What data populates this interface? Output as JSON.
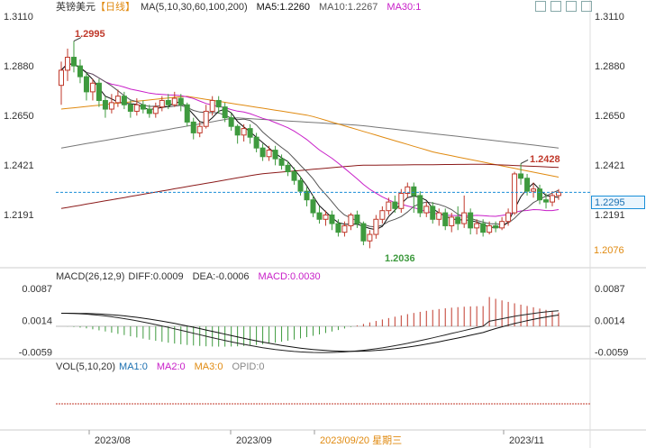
{
  "header": {
    "symbol": "英镑美元",
    "period": "【日线】",
    "ma_label": "MA(5,10,30,60,100,200)",
    "ma5": "MA5:1.2260",
    "ma10": "MA10:1.2267",
    "ma30": "MA30:1"
  },
  "macd_header": {
    "label": "MACD(26,12,9)",
    "diff": "DIFF:0.0009",
    "dea": "DEA:-0.0006",
    "macd": "MACD:0.0030"
  },
  "vol_header": {
    "label": "VOL(5,10,20)",
    "ma1": "MA1:0",
    "ma2": "MA2:0",
    "ma3": "MA3:0",
    "opid": "OPID:0"
  },
  "colors": {
    "up": "#c0392b",
    "down": "#3e9a3e",
    "ma5": "#111111",
    "ma10": "#555555",
    "ma30": "#c81ec8",
    "ma60": "#e08a10",
    "ma100": "#8b1a1a",
    "ma200": "#777777",
    "current": "#1a8fd8",
    "dea": "#111111",
    "diff": "#222222"
  },
  "chart_data": {
    "type": "candlestick",
    "price_axis": {
      "ticks": [
        "1.3110",
        "1.2880",
        "1.2650",
        "1.2421",
        "1.2191"
      ],
      "ylim": [
        1.195,
        1.3135
      ]
    },
    "x_labels": [
      "2023/08",
      "2023/09",
      "2023/09/20 星期三",
      "2023/11"
    ],
    "annotations": {
      "high": "1.2995",
      "low": "1.2036",
      "recent_high": "1.2428",
      "current": "1.2295",
      "ma_level": "1.2076"
    },
    "candles": [
      [
        1.279,
        1.286,
        1.27,
        1.29
      ],
      [
        1.286,
        1.292,
        1.281,
        1.296
      ],
      [
        1.292,
        1.288,
        1.285,
        1.2995
      ],
      [
        1.288,
        1.283,
        1.28,
        1.291
      ],
      [
        1.283,
        1.276,
        1.272,
        1.285
      ],
      [
        1.276,
        1.28,
        1.272,
        1.282
      ],
      [
        1.28,
        1.272,
        1.269,
        1.282
      ],
      [
        1.272,
        1.268,
        1.264,
        1.274
      ],
      [
        1.268,
        1.271,
        1.266,
        1.275
      ],
      [
        1.271,
        1.274,
        1.269,
        1.277
      ],
      [
        1.274,
        1.27,
        1.268,
        1.276
      ],
      [
        1.27,
        1.267,
        1.264,
        1.272
      ],
      [
        1.267,
        1.27,
        1.265,
        1.273
      ],
      [
        1.27,
        1.268,
        1.266,
        1.272
      ],
      [
        1.268,
        1.266,
        1.264,
        1.27
      ],
      [
        1.266,
        1.269,
        1.264,
        1.271
      ],
      [
        1.269,
        1.272,
        1.267,
        1.274
      ],
      [
        1.272,
        1.27,
        1.268,
        1.275
      ],
      [
        1.27,
        1.273,
        1.269,
        1.276
      ],
      [
        1.273,
        1.27,
        1.267,
        1.275
      ],
      [
        1.27,
        1.262,
        1.26,
        1.271
      ],
      [
        1.262,
        1.257,
        1.254,
        1.264
      ],
      [
        1.257,
        1.26,
        1.255,
        1.262
      ],
      [
        1.26,
        1.267,
        1.259,
        1.27
      ],
      [
        1.267,
        1.272,
        1.265,
        1.274
      ],
      [
        1.272,
        1.269,
        1.266,
        1.274
      ],
      [
        1.269,
        1.264,
        1.262,
        1.271
      ],
      [
        1.264,
        1.26,
        1.258,
        1.266
      ],
      [
        1.26,
        1.256,
        1.252,
        1.261
      ],
      [
        1.256,
        1.259,
        1.253,
        1.261
      ],
      [
        1.259,
        1.255,
        1.252,
        1.261
      ],
      [
        1.255,
        1.25,
        1.248,
        1.257
      ],
      [
        1.25,
        1.246,
        1.244,
        1.252
      ],
      [
        1.246,
        1.249,
        1.244,
        1.251
      ],
      [
        1.249,
        1.245,
        1.242,
        1.251
      ],
      [
        1.245,
        1.242,
        1.24,
        1.247
      ],
      [
        1.242,
        1.239,
        1.237,
        1.244
      ],
      [
        1.239,
        1.235,
        1.233,
        1.241
      ],
      [
        1.235,
        1.23,
        1.228,
        1.237
      ],
      [
        1.23,
        1.226,
        1.223,
        1.232
      ],
      [
        1.226,
        1.22,
        1.218,
        1.228
      ],
      [
        1.22,
        1.217,
        1.215,
        1.223
      ],
      [
        1.217,
        1.219,
        1.214,
        1.221
      ],
      [
        1.219,
        1.215,
        1.212,
        1.221
      ],
      [
        1.215,
        1.211,
        1.209,
        1.217
      ],
      [
        1.211,
        1.214,
        1.209,
        1.216
      ],
      [
        1.214,
        1.219,
        1.212,
        1.22
      ],
      [
        1.219,
        1.215,
        1.213,
        1.221
      ],
      [
        1.215,
        1.207,
        1.205,
        1.216
      ],
      [
        1.207,
        1.21,
        1.2036,
        1.212
      ],
      [
        1.21,
        1.217,
        1.208,
        1.219
      ],
      [
        1.217,
        1.221,
        1.215,
        1.223
      ],
      [
        1.221,
        1.225,
        1.219,
        1.227
      ],
      [
        1.225,
        1.222,
        1.22,
        1.228
      ],
      [
        1.222,
        1.229,
        1.22,
        1.231
      ],
      [
        1.229,
        1.232,
        1.227,
        1.234
      ],
      [
        1.232,
        1.228,
        1.22,
        1.234
      ],
      [
        1.228,
        1.22,
        1.218,
        1.23
      ],
      [
        1.22,
        1.223,
        1.218,
        1.225
      ],
      [
        1.223,
        1.217,
        1.215,
        1.225
      ],
      [
        1.217,
        1.22,
        1.214,
        1.222
      ],
      [
        1.22,
        1.214,
        1.212,
        1.222
      ],
      [
        1.214,
        1.218,
        1.211,
        1.22
      ],
      [
        1.218,
        1.215,
        1.212,
        1.223
      ],
      [
        1.215,
        1.22,
        1.213,
        1.228
      ],
      [
        1.22,
        1.213,
        1.21,
        1.222
      ],
      [
        1.213,
        1.215,
        1.21,
        1.217
      ],
      [
        1.215,
        1.211,
        1.209,
        1.217
      ],
      [
        1.211,
        1.214,
        1.21,
        1.216
      ],
      [
        1.214,
        1.213,
        1.211,
        1.216
      ],
      [
        1.213,
        1.216,
        1.212,
        1.218
      ],
      [
        1.216,
        1.22,
        1.214,
        1.222
      ],
      [
        1.22,
        1.238,
        1.219,
        1.239
      ],
      [
        1.238,
        1.236,
        1.233,
        1.2428
      ],
      [
        1.236,
        1.23,
        1.228,
        1.238
      ],
      [
        1.23,
        1.231,
        1.227,
        1.234
      ],
      [
        1.231,
        1.226,
        1.224,
        1.233
      ],
      [
        1.226,
        1.225,
        1.222,
        1.229
      ],
      [
        1.225,
        1.228,
        1.223,
        1.23
      ],
      [
        1.228,
        1.2295,
        1.226,
        1.231
      ]
    ]
  }
}
